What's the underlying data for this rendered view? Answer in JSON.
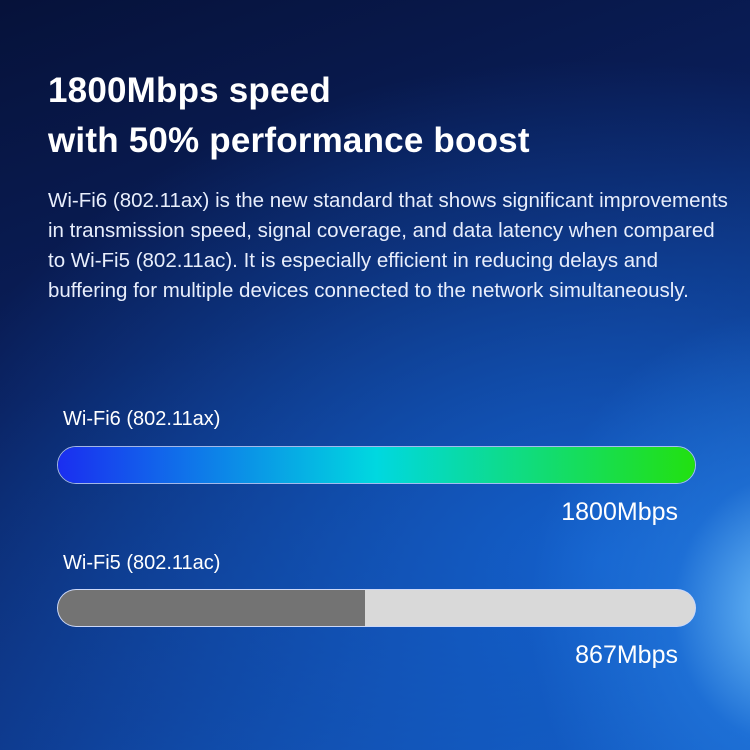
{
  "title_lines": [
    "1800Mbps speed",
    "with 50% performance boost"
  ],
  "description": "Wi-Fi6 (802.11ax) is the new standard that shows significant improvements in transmission speed, signal coverage, and data latency when compared to Wi-Fi5 (802.11ac). It is especially efficient in reducing delays and buffering for multiple devices connected to the network simultaneously.",
  "chart_data": {
    "type": "bar",
    "orientation": "horizontal",
    "categories": [
      "Wi-Fi6 (802.11ax)",
      "Wi-Fi5 (802.11ac)"
    ],
    "values": [
      1800,
      867
    ],
    "value_labels": [
      "1800Mbps",
      "867Mbps"
    ],
    "unit": "Mbps",
    "xlim": [
      0,
      1800
    ],
    "colors": {
      "wifi6_gradient": [
        "#1a2ef0",
        "#00d8e0",
        "#22e010"
      ],
      "wifi5_fill": "#737373",
      "track": "#d9d9d9"
    }
  }
}
